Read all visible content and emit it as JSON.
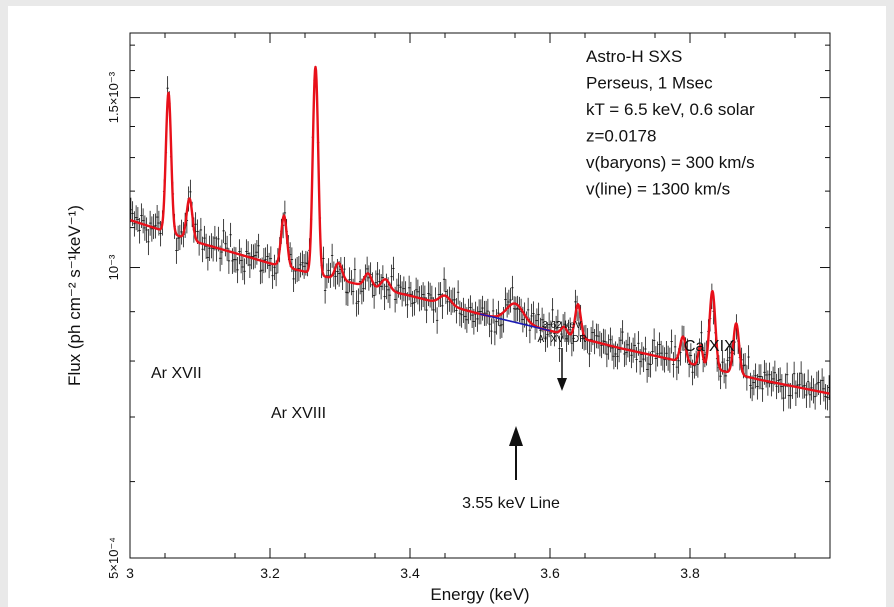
{
  "chart_data": {
    "type": "line",
    "title": "",
    "xlabel": "Energy (keV)",
    "ylabel": "Flux (ph cm⁻² s⁻¹keV⁻¹)",
    "xlim": [
      3.0,
      4.0
    ],
    "ylim": [
      0.0005,
      0.00175
    ],
    "yscale": "log",
    "grid": false,
    "x_ticks": [
      3.0,
      3.2,
      3.4,
      3.6,
      3.8
    ],
    "x_tick_labels": [
      "3",
      "3.2",
      "3.4",
      "3.6",
      "3.8"
    ],
    "y_ticks": [
      0.0005,
      0.001,
      0.0015
    ],
    "y_tick_labels": [
      "5×10⁻⁴",
      "10⁻³",
      "1.5×10⁻³"
    ],
    "info_box": [
      "Astro-H SXS",
      "Perseus, 1 Msec",
      "kT = 6.5 keV, 0.6 solar",
      "z=0.0178",
      "v(baryons) = 300 km/s",
      "v(line) = 1300 km/s"
    ],
    "annotations": {
      "ar17": "Ar XVII",
      "ar18": "Ar XVIII",
      "ca19": "Ca XIX",
      "dr_line1": "3.62 keV",
      "dr_line2": "Ar XVII DR",
      "line355": "3.55 keV Line"
    },
    "continuum_x": [
      3.0,
      3.1,
      3.2,
      3.3,
      3.4,
      3.5,
      3.6,
      3.7,
      3.8,
      3.9,
      4.0
    ],
    "continuum_y": [
      0.00112,
      0.00106,
      0.00101,
      0.00097,
      0.000935,
      0.000895,
      0.00086,
      0.000825,
      0.000795,
      0.000765,
      0.00074
    ],
    "lines": [
      {
        "center": 3.055,
        "height": 0.00043,
        "sigma": 0.0035
      },
      {
        "center": 3.085,
        "height": 0.00011,
        "sigma": 0.004
      },
      {
        "center": 3.22,
        "height": 0.00013,
        "sigma": 0.004
      },
      {
        "center": 3.265,
        "height": 0.00063,
        "sigma": 0.0035
      },
      {
        "center": 3.298,
        "height": 4e-05,
        "sigma": 0.005
      },
      {
        "center": 3.34,
        "height": 3e-05,
        "sigma": 0.005
      },
      {
        "center": 3.365,
        "height": 2.5e-05,
        "sigma": 0.006
      },
      {
        "center": 3.45,
        "height": 2e-05,
        "sigma": 0.008
      },
      {
        "center": 3.55,
        "height": 4e-05,
        "sigma": 0.012
      },
      {
        "center": 3.62,
        "height": 1.5e-05,
        "sigma": 0.004
      },
      {
        "center": 3.64,
        "height": 7e-05,
        "sigma": 0.004
      },
      {
        "center": 3.79,
        "height": 5e-05,
        "sigma": 0.004
      },
      {
        "center": 3.815,
        "height": 4e-05,
        "sigma": 0.003
      },
      {
        "center": 3.832,
        "height": 0.00016,
        "sigma": 0.004
      },
      {
        "center": 3.866,
        "height": 0.0001,
        "sigma": 0.004
      }
    ],
    "series": [
      {
        "name": "",
        "color": "#e8101a"
      },
      {
        "name": "",
        "color": "#1a1ab4"
      },
      {
        "name": "",
        "color": "#111111"
      }
    ],
    "blue_range": [
      3.5,
      3.6
    ],
    "dr_arrow_energy": 3.62,
    "line_arrow_energy": 3.55
  }
}
